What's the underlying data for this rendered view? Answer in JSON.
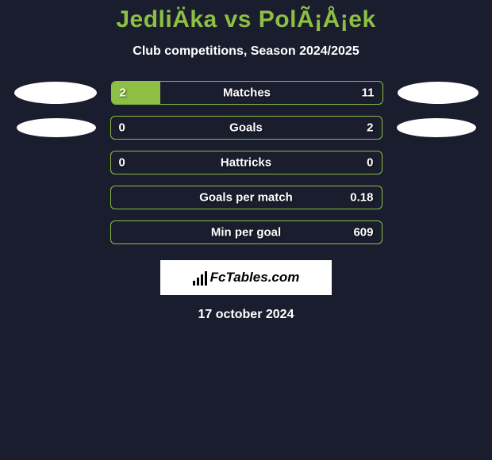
{
  "title": "JedliÄka vs PolÃ¡Å¡ek",
  "subtitle": "Club competitions, Season 2024/2025",
  "footer_brand_text": "FcTables.com",
  "footer_date": "17 october 2024",
  "bar_track_width": 343,
  "colors": {
    "background": "#1a1d2e",
    "accent": "#8cbf44",
    "text": "#ffffff",
    "brand_bg": "#ffffff",
    "brand_text": "#000000"
  },
  "stats": [
    {
      "label": "Matches",
      "left_value": "2",
      "right_value": "11",
      "left_fill_pct": 18,
      "right_fill_pct": 0,
      "show_left_avatar": true,
      "show_right_avatar": true,
      "avatar_left_class": "avatar-left-1",
      "avatar_right_class": "avatar-right-1"
    },
    {
      "label": "Goals",
      "left_value": "0",
      "right_value": "2",
      "left_fill_pct": 0,
      "right_fill_pct": 0,
      "show_left_avatar": true,
      "show_right_avatar": true,
      "avatar_left_class": "avatar-left-2",
      "avatar_right_class": "avatar-right-2"
    },
    {
      "label": "Hattricks",
      "left_value": "0",
      "right_value": "0",
      "left_fill_pct": 0,
      "right_fill_pct": 0,
      "show_left_avatar": false,
      "show_right_avatar": false
    },
    {
      "label": "Goals per match",
      "left_value": "",
      "right_value": "0.18",
      "left_fill_pct": 0,
      "right_fill_pct": 0,
      "show_left_avatar": false,
      "show_right_avatar": false
    },
    {
      "label": "Min per goal",
      "left_value": "",
      "right_value": "609",
      "left_fill_pct": 0,
      "right_fill_pct": 0,
      "show_left_avatar": false,
      "show_right_avatar": false
    }
  ]
}
